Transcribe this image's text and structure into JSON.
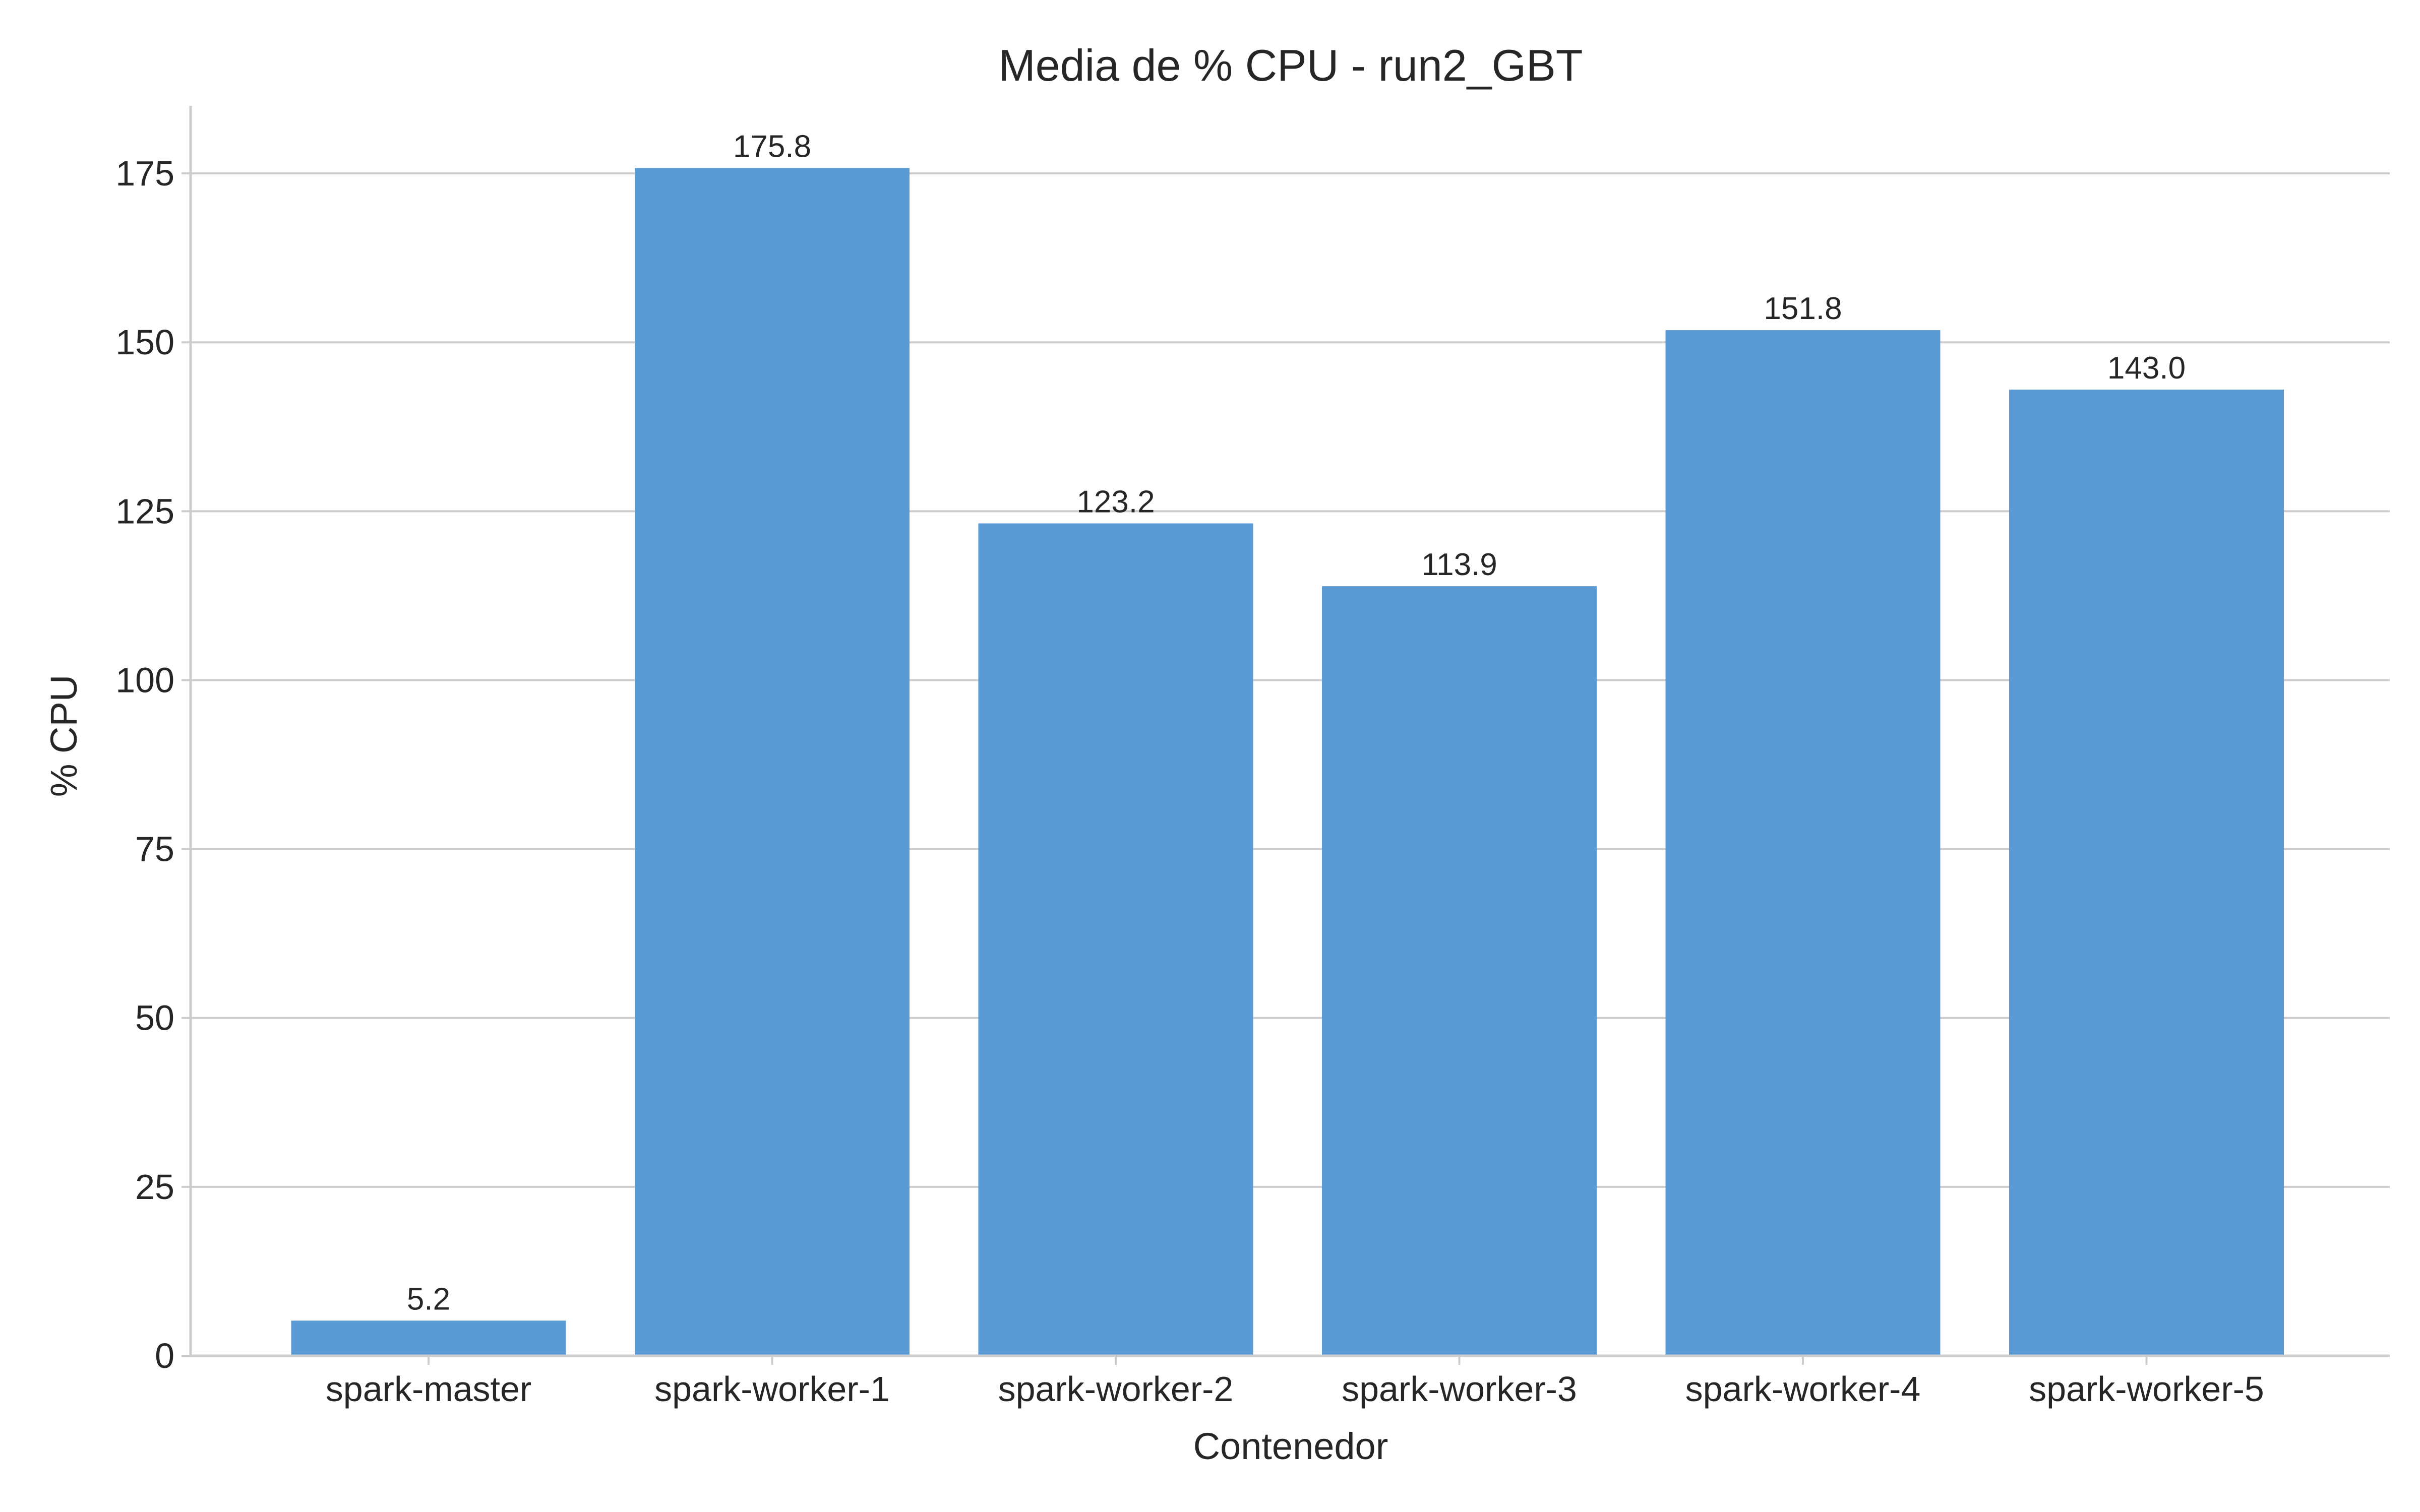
{
  "chart_data": {
    "type": "bar",
    "title": "Media de % CPU - run2_GBT",
    "xlabel": "Contenedor",
    "ylabel": "% CPU",
    "categories": [
      "spark-master",
      "spark-worker-1",
      "spark-worker-2",
      "spark-worker-3",
      "spark-worker-4",
      "spark-worker-5"
    ],
    "values": [
      5.2,
      175.8,
      123.2,
      113.9,
      151.8,
      143.0
    ],
    "data_labels": [
      "5.2",
      "175.8",
      "123.2",
      "113.9",
      "151.8",
      "143.0"
    ],
    "yticks": [
      0,
      25,
      50,
      75,
      100,
      125,
      150,
      175
    ],
    "ylim": [
      0,
      185
    ],
    "grid": "horizontal",
    "legend": "none",
    "bar_color": "#5b9bd5"
  }
}
